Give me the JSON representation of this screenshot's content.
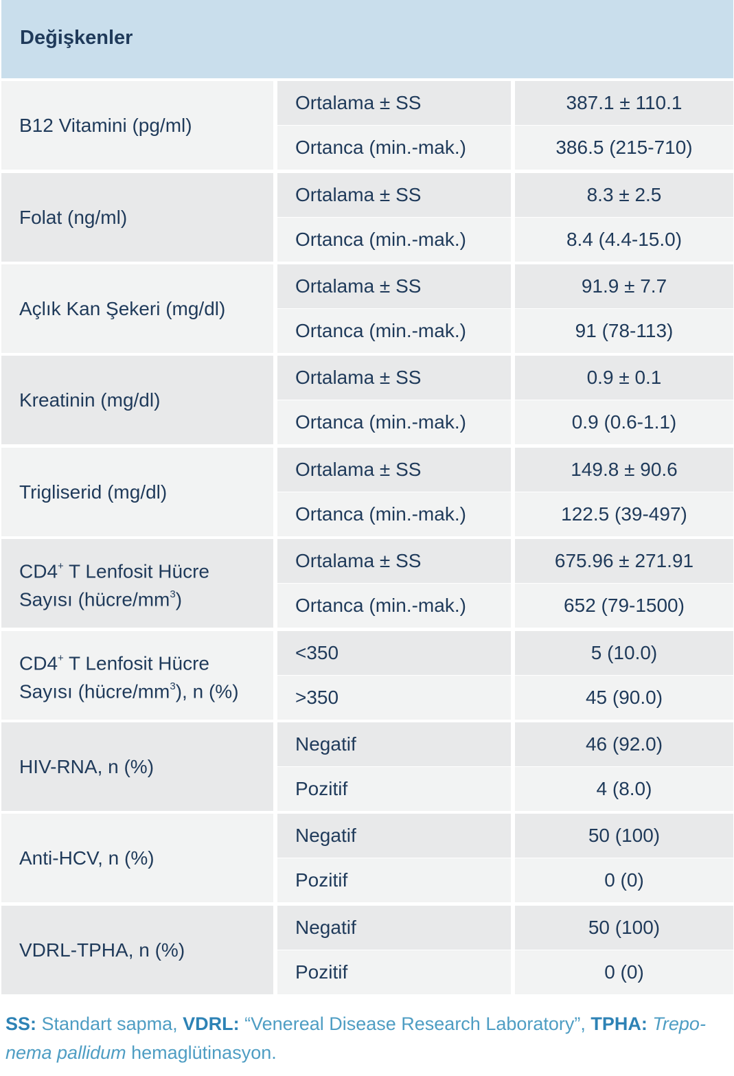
{
  "header": {
    "title": "Değişkenler"
  },
  "rows": [
    {
      "variable": "B12 Vitamini (pg/ml)",
      "stats": [
        {
          "label": "Ortalama ± SS",
          "value": "387.1 ± 110.1"
        },
        {
          "label": "Ortanca (min.-mak.)",
          "value": "386.5 (215-710)"
        }
      ]
    },
    {
      "variable": "Folat (ng/ml)",
      "stats": [
        {
          "label": "Ortalama ± SS",
          "value": "8.3 ± 2.5"
        },
        {
          "label": "Ortanca (min.-mak.)",
          "value": "8.4 (4.4-15.0)"
        }
      ]
    },
    {
      "variable": "Açlık Kan Şekeri (mg/dl)",
      "stats": [
        {
          "label": "Ortalama ± SS",
          "value": "91.9 ± 7.7"
        },
        {
          "label": "Ortanca (min.-mak.)",
          "value": "91 (78-113)"
        }
      ]
    },
    {
      "variable": "Kreatinin (mg/dl)",
      "stats": [
        {
          "label": "Ortalama ± SS",
          "value": "0.9 ± 0.1"
        },
        {
          "label": "Ortanca (min.-mak.)",
          "value": "0.9 (0.6-1.1)"
        }
      ]
    },
    {
      "variable": "Trigliserid (mg/dl)",
      "stats": [
        {
          "label": "Ortalama ± SS",
          "value": "149.8 ± 90.6"
        },
        {
          "label": "Ortanca (min.-mak.)",
          "value": "122.5 (39-497)"
        }
      ]
    },
    {
      "variable_line1_a": "CD4",
      "variable_line1_sup": "+",
      "variable_line1_b": " T Lenfosit Hücre",
      "variable_line2_a": "Sayısı (hücre/mm",
      "variable_line2_sup": "3",
      "variable_line2_b": ")",
      "stats": [
        {
          "label": "Ortalama ± SS",
          "value": "675.96 ± 271.91"
        },
        {
          "label": "Ortanca (min.-mak.)",
          "value": "652 (79-1500)"
        }
      ]
    },
    {
      "variable_line1_a": "CD4",
      "variable_line1_sup": "+",
      "variable_line1_b": " T Lenfosit Hücre",
      "variable_line2_a": "Sayısı (hücre/mm",
      "variable_line2_sup": "3",
      "variable_line2_b": "), n (%)",
      "stats": [
        {
          "label": "<350",
          "value": "5 (10.0)"
        },
        {
          "label": ">350",
          "value": "45 (90.0)"
        }
      ]
    },
    {
      "variable": "HIV-RNA, n (%)",
      "stats": [
        {
          "label": "Negatif",
          "value": "46 (92.0)"
        },
        {
          "label": "Pozitif",
          "value": "4 (8.0)"
        }
      ]
    },
    {
      "variable": "Anti-HCV, n (%)",
      "stats": [
        {
          "label": "Negatif",
          "value": "50 (100)"
        },
        {
          "label": "Pozitif",
          "value": "0 (0)"
        }
      ]
    },
    {
      "variable": "VDRL-TPHA, n (%)",
      "stats": [
        {
          "label": "Negatif",
          "value": "50 (100)"
        },
        {
          "label": "Pozitif",
          "value": "0 (0)"
        }
      ]
    }
  ],
  "footnote": {
    "ss_abbr": "SS:",
    "ss_text": " Standart sapma, ",
    "vdrl_abbr": "VDRL:",
    "vdrl_text": " “Venereal Disease Research Laboratory”, ",
    "tpha_abbr": "TPHA:",
    "tpha_italic_1": "Trepo-",
    "tpha_italic_2": "nema pallidum",
    "tpha_text": " hemaglütinasyon."
  }
}
